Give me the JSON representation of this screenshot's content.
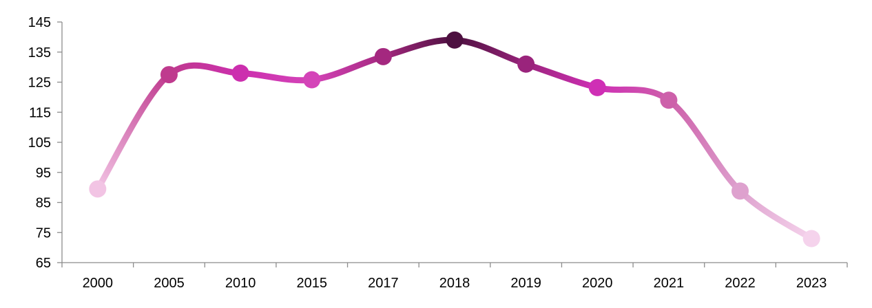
{
  "chart_data": {
    "type": "line",
    "title": "",
    "xlabel": "",
    "ylabel": "",
    "categories": [
      "2000",
      "2005",
      "2010",
      "2015",
      "2017",
      "2018",
      "2019",
      "2020",
      "2021",
      "2022",
      "2023"
    ],
    "series": [
      {
        "values": [
          89.5,
          127.5,
          128,
          125.8,
          133.5,
          139,
          131,
          123.2,
          119,
          88.8,
          73
        ]
      }
    ],
    "point_colors": [
      "#f2c4e4",
      "#bf3a8e",
      "#cc2fae",
      "#d444b8",
      "#a4287f",
      "#4d1040",
      "#9a247c",
      "#cf2fb5",
      "#cd60aa",
      "#dea1ce",
      "#f5d3ec"
    ],
    "ylim": [
      65,
      145
    ],
    "yticks": [
      "65",
      "75",
      "85",
      "95",
      "105",
      "115",
      "125",
      "135",
      "145"
    ],
    "smooth": true,
    "grid": false,
    "legend": "none"
  }
}
